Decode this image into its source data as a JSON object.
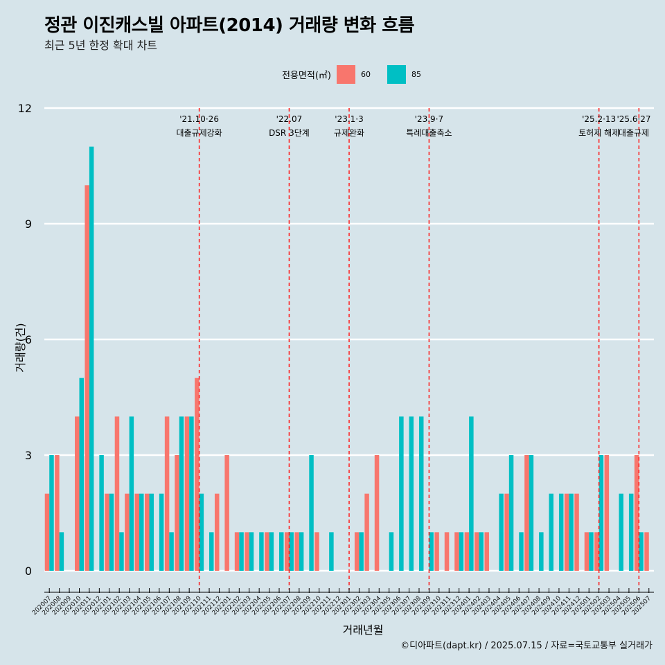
{
  "title": "정관 이진캐스빌 아파트(2014) 거래량 변화 흐름",
  "subtitle": "최근 5년 한정 확대 차트",
  "caption": "©디아파트(dapt.kr) / 2025.07.15 / 자료=국토교통부 실거래가",
  "legend": {
    "title": "전용면적(㎡)",
    "items": [
      {
        "label": "60",
        "color": "#f8766d"
      },
      {
        "label": "85",
        "color": "#00bfc4"
      }
    ]
  },
  "chart_data": {
    "type": "bar",
    "xlabel": "거래년월",
    "ylabel": "거래량(건)",
    "ylim": [
      0,
      12
    ],
    "yticks": [
      0,
      3,
      6,
      9,
      12
    ],
    "categories": [
      "202007",
      "202008",
      "202009",
      "202010",
      "202011",
      "202012",
      "202101",
      "202102",
      "202103",
      "202104",
      "202105",
      "202106",
      "202107",
      "202108",
      "202109",
      "202110",
      "202111",
      "202112",
      "202201",
      "202202",
      "202203",
      "202204",
      "202205",
      "202206",
      "202207",
      "202208",
      "202209",
      "202210",
      "202211",
      "202212",
      "202301",
      "202302",
      "202303",
      "202304",
      "202305",
      "202306",
      "202307",
      "202308",
      "202309",
      "202310",
      "202311",
      "202312",
      "202401",
      "202402",
      "202403",
      "202404",
      "202405",
      "202406",
      "202407",
      "202408",
      "202409",
      "202410",
      "202411",
      "202412",
      "202501",
      "202502",
      "202503",
      "202504",
      "202505",
      "202506",
      "202507"
    ],
    "series": [
      {
        "name": "60",
        "color": "#f8766d",
        "values": [
          2,
          3,
          0,
          4,
          10,
          0,
          2,
          4,
          2,
          2,
          2,
          0,
          4,
          3,
          4,
          5,
          0,
          2,
          3,
          1,
          1,
          0,
          1,
          0,
          1,
          1,
          0,
          1,
          0,
          0,
          0,
          1,
          2,
          3,
          0,
          0,
          0,
          0,
          0,
          1,
          1,
          1,
          1,
          1,
          1,
          0,
          2,
          0,
          3,
          0,
          0,
          0,
          2,
          2,
          1,
          1,
          3,
          0,
          0,
          3,
          1
        ]
      },
      {
        "name": "85",
        "color": "#00bfc4",
        "values": [
          3,
          1,
          0,
          5,
          11,
          3,
          2,
          1,
          4,
          2,
          2,
          2,
          1,
          4,
          4,
          2,
          1,
          0,
          0,
          1,
          1,
          1,
          1,
          1,
          1,
          1,
          3,
          0,
          1,
          0,
          0,
          1,
          0,
          0,
          1,
          4,
          4,
          4,
          1,
          0,
          0,
          1,
          4,
          1,
          0,
          2,
          3,
          1,
          3,
          1,
          2,
          2,
          2,
          0,
          1,
          3,
          0,
          2,
          2,
          1,
          0
        ]
      }
    ],
    "annotations": [
      {
        "category": "202110",
        "date": "'21.10·26",
        "label": "대출규제강화"
      },
      {
        "category": "202207",
        "date": "'22.07",
        "label": "DSR 3단계"
      },
      {
        "category": "202301",
        "date": "'23.1·3",
        "label": "규제완화"
      },
      {
        "category": "202309",
        "date": "'23.9·7",
        "label": "특례대출축소"
      },
      {
        "category": "202502",
        "date": "'25.2·13",
        "label": "토허제 해제"
      },
      {
        "category": "202506",
        "date": "'25.6·27",
        "label": "대출규제"
      }
    ]
  }
}
